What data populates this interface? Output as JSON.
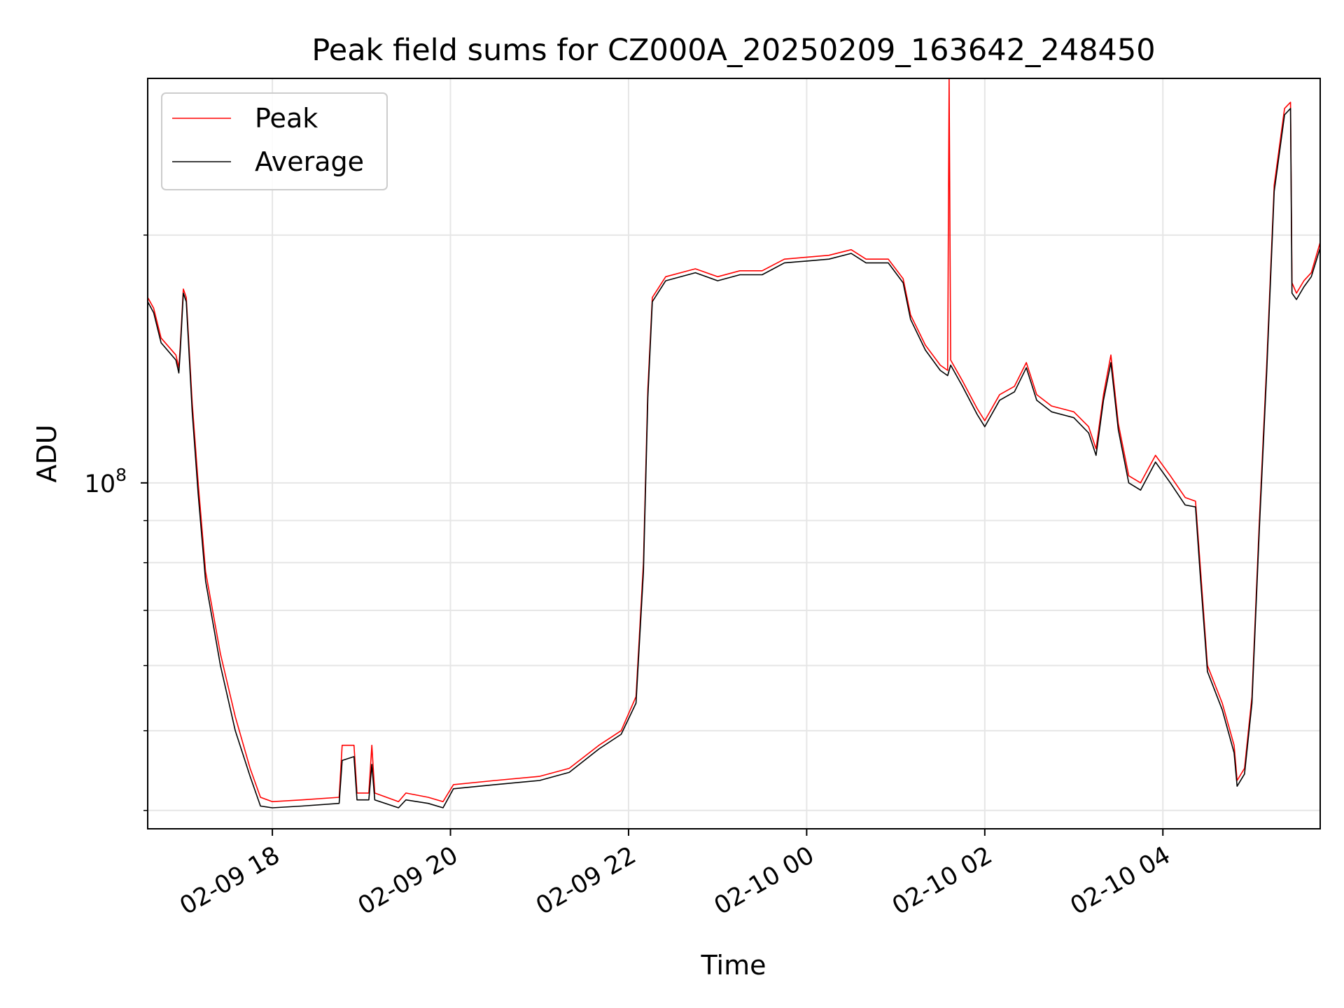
{
  "chart_data": {
    "type": "line",
    "title": "Peak field sums for CZ000A_20250209_163642_248450",
    "xlabel": "Time",
    "ylabel": "ADU",
    "y_scale": "log",
    "ylim": [
      38000000,
      310000000
    ],
    "xlim": [
      "2025-02-09 16:36",
      "2025-02-10 05:46"
    ],
    "x_tick_labels": [
      "02-09 18",
      "02-09 20",
      "02-09 22",
      "02-10 00",
      "02-10 02",
      "02-10 04"
    ],
    "x_ticks": [
      "2025-02-09 18:00",
      "2025-02-09 20:00",
      "2025-02-09 22:00",
      "2025-02-10 00:00",
      "2025-02-10 02:00",
      "2025-02-10 04:00"
    ],
    "y_major_ticks": [
      100000000
    ],
    "y_major_tick_labels": [
      "10^8"
    ],
    "y_minor_ticks": [
      40000000,
      50000000,
      60000000,
      70000000,
      80000000,
      90000000,
      200000000
    ],
    "grid": true,
    "legend_position": "upper-left",
    "series": [
      {
        "name": "Peak",
        "color": "#ff0000",
        "points": [
          [
            "2025-02-09 16:36",
            168000000
          ],
          [
            "2025-02-09 16:40",
            163000000
          ],
          [
            "2025-02-09 16:45",
            150000000
          ],
          [
            "2025-02-09 16:55",
            143000000
          ],
          [
            "2025-02-09 16:57",
            138000000
          ],
          [
            "2025-02-09 16:58",
            147000000
          ],
          [
            "2025-02-09 17:00",
            172000000
          ],
          [
            "2025-02-09 17:02",
            168000000
          ],
          [
            "2025-02-09 17:06",
            125000000
          ],
          [
            "2025-02-09 17:10",
            100000000
          ],
          [
            "2025-02-09 17:15",
            78000000
          ],
          [
            "2025-02-09 17:25",
            62000000
          ],
          [
            "2025-02-09 17:35",
            52000000
          ],
          [
            "2025-02-09 17:45",
            45000000
          ],
          [
            "2025-02-09 17:52",
            41500000
          ],
          [
            "2025-02-09 18:00",
            41000000
          ],
          [
            "2025-02-09 18:20",
            41200000
          ],
          [
            "2025-02-09 18:45",
            41500000
          ],
          [
            "2025-02-09 18:47",
            48000000
          ],
          [
            "2025-02-09 18:55",
            48000000
          ],
          [
            "2025-02-09 18:57",
            42000000
          ],
          [
            "2025-02-09 19:05",
            42000000
          ],
          [
            "2025-02-09 19:07",
            48000000
          ],
          [
            "2025-02-09 19:09",
            42000000
          ],
          [
            "2025-02-09 19:25",
            41000000
          ],
          [
            "2025-02-09 19:30",
            42000000
          ],
          [
            "2025-02-09 19:45",
            41500000
          ],
          [
            "2025-02-09 19:55",
            41000000
          ],
          [
            "2025-02-09 20:02",
            43000000
          ],
          [
            "2025-02-09 20:30",
            43500000
          ],
          [
            "2025-02-09 21:00",
            44000000
          ],
          [
            "2025-02-09 21:20",
            45000000
          ],
          [
            "2025-02-09 21:40",
            48000000
          ],
          [
            "2025-02-09 21:55",
            50000000
          ],
          [
            "2025-02-09 22:05",
            55000000
          ],
          [
            "2025-02-09 22:10",
            80000000
          ],
          [
            "2025-02-09 22:13",
            130000000
          ],
          [
            "2025-02-09 22:16",
            168000000
          ],
          [
            "2025-02-09 22:25",
            178000000
          ],
          [
            "2025-02-09 22:45",
            182000000
          ],
          [
            "2025-02-09 23:00",
            178000000
          ],
          [
            "2025-02-09 23:15",
            181000000
          ],
          [
            "2025-02-09 23:30",
            181000000
          ],
          [
            "2025-02-09 23:45",
            187000000
          ],
          [
            "2025-02-10 00:00",
            188000000
          ],
          [
            "2025-02-10 00:15",
            189000000
          ],
          [
            "2025-02-10 00:30",
            192000000
          ],
          [
            "2025-02-10 00:40",
            187000000
          ],
          [
            "2025-02-10 00:55",
            187000000
          ],
          [
            "2025-02-10 01:05",
            177000000
          ],
          [
            "2025-02-10 01:10",
            160000000
          ],
          [
            "2025-02-10 01:20",
            147000000
          ],
          [
            "2025-02-10 01:30",
            139000000
          ],
          [
            "2025-02-10 01:35",
            137000000
          ],
          [
            "2025-02-10 01:36",
            310000000
          ],
          [
            "2025-02-10 01:37",
            141000000
          ],
          [
            "2025-02-10 01:45",
            133000000
          ],
          [
            "2025-02-10 01:55",
            123000000
          ],
          [
            "2025-02-10 02:00",
            119000000
          ],
          [
            "2025-02-10 02:10",
            128000000
          ],
          [
            "2025-02-10 02:20",
            131000000
          ],
          [
            "2025-02-10 02:28",
            140000000
          ],
          [
            "2025-02-10 02:35",
            128000000
          ],
          [
            "2025-02-10 02:45",
            124000000
          ],
          [
            "2025-02-10 03:00",
            122000000
          ],
          [
            "2025-02-10 03:10",
            117000000
          ],
          [
            "2025-02-10 03:15",
            110000000
          ],
          [
            "2025-02-10 03:20",
            128000000
          ],
          [
            "2025-02-10 03:25",
            143000000
          ],
          [
            "2025-02-10 03:30",
            118000000
          ],
          [
            "2025-02-10 03:37",
            102000000
          ],
          [
            "2025-02-10 03:45",
            100000000
          ],
          [
            "2025-02-10 03:55",
            108000000
          ],
          [
            "2025-02-10 04:05",
            102000000
          ],
          [
            "2025-02-10 04:15",
            96000000
          ],
          [
            "2025-02-10 04:22",
            95000000
          ],
          [
            "2025-02-10 04:25",
            80000000
          ],
          [
            "2025-02-10 04:30",
            60000000
          ],
          [
            "2025-02-10 04:40",
            54000000
          ],
          [
            "2025-02-10 04:48",
            48000000
          ],
          [
            "2025-02-10 04:50",
            43500000
          ],
          [
            "2025-02-10 04:55",
            45000000
          ],
          [
            "2025-02-10 05:00",
            55000000
          ],
          [
            "2025-02-10 05:05",
            90000000
          ],
          [
            "2025-02-10 05:10",
            140000000
          ],
          [
            "2025-02-10 05:15",
            230000000
          ],
          [
            "2025-02-10 05:22",
            285000000
          ],
          [
            "2025-02-10 05:26",
            290000000
          ],
          [
            "2025-02-10 05:27",
            175000000
          ],
          [
            "2025-02-10 05:30",
            170000000
          ],
          [
            "2025-02-10 05:35",
            176000000
          ],
          [
            "2025-02-10 05:40",
            180000000
          ],
          [
            "2025-02-10 05:46",
            196000000
          ]
        ]
      },
      {
        "name": "Average",
        "color": "#000000",
        "points": [
          [
            "2025-02-09 16:36",
            166000000
          ],
          [
            "2025-02-09 16:40",
            161000000
          ],
          [
            "2025-02-09 16:45",
            148000000
          ],
          [
            "2025-02-09 16:55",
            141000000
          ],
          [
            "2025-02-09 16:57",
            136000000
          ],
          [
            "2025-02-09 16:58",
            145000000
          ],
          [
            "2025-02-09 17:00",
            170000000
          ],
          [
            "2025-02-09 17:02",
            166000000
          ],
          [
            "2025-02-09 17:06",
            122000000
          ],
          [
            "2025-02-09 17:10",
            97000000
          ],
          [
            "2025-02-09 17:15",
            76000000
          ],
          [
            "2025-02-09 17:25",
            60000000
          ],
          [
            "2025-02-09 17:35",
            50000000
          ],
          [
            "2025-02-09 17:45",
            44000000
          ],
          [
            "2025-02-09 17:52",
            40500000
          ],
          [
            "2025-02-09 18:00",
            40300000
          ],
          [
            "2025-02-09 18:20",
            40500000
          ],
          [
            "2025-02-09 18:45",
            40800000
          ],
          [
            "2025-02-09 18:47",
            46000000
          ],
          [
            "2025-02-09 18:55",
            46500000
          ],
          [
            "2025-02-09 18:57",
            41200000
          ],
          [
            "2025-02-09 19:05",
            41200000
          ],
          [
            "2025-02-09 19:07",
            45500000
          ],
          [
            "2025-02-09 19:09",
            41200000
          ],
          [
            "2025-02-09 19:25",
            40300000
          ],
          [
            "2025-02-09 19:30",
            41200000
          ],
          [
            "2025-02-09 19:45",
            40800000
          ],
          [
            "2025-02-09 19:55",
            40300000
          ],
          [
            "2025-02-09 20:02",
            42500000
          ],
          [
            "2025-02-09 20:30",
            43000000
          ],
          [
            "2025-02-09 21:00",
            43500000
          ],
          [
            "2025-02-09 21:20",
            44500000
          ],
          [
            "2025-02-09 21:40",
            47500000
          ],
          [
            "2025-02-09 21:55",
            49500000
          ],
          [
            "2025-02-09 22:05",
            54000000
          ],
          [
            "2025-02-09 22:10",
            78000000
          ],
          [
            "2025-02-09 22:13",
            127000000
          ],
          [
            "2025-02-09 22:16",
            166000000
          ],
          [
            "2025-02-09 22:25",
            176000000
          ],
          [
            "2025-02-09 22:45",
            180000000
          ],
          [
            "2025-02-09 23:00",
            176000000
          ],
          [
            "2025-02-09 23:15",
            179000000
          ],
          [
            "2025-02-09 23:30",
            179000000
          ],
          [
            "2025-02-09 23:45",
            185000000
          ],
          [
            "2025-02-10 00:00",
            186000000
          ],
          [
            "2025-02-10 00:15",
            187000000
          ],
          [
            "2025-02-10 00:30",
            190000000
          ],
          [
            "2025-02-10 00:40",
            185000000
          ],
          [
            "2025-02-10 00:55",
            185000000
          ],
          [
            "2025-02-10 01:05",
            175000000
          ],
          [
            "2025-02-10 01:10",
            158000000
          ],
          [
            "2025-02-10 01:20",
            145000000
          ],
          [
            "2025-02-10 01:30",
            137000000
          ],
          [
            "2025-02-10 01:35",
            135000000
          ],
          [
            "2025-02-10 01:37",
            139000000
          ],
          [
            "2025-02-10 01:45",
            131000000
          ],
          [
            "2025-02-10 01:55",
            121000000
          ],
          [
            "2025-02-10 02:00",
            117000000
          ],
          [
            "2025-02-10 02:10",
            126000000
          ],
          [
            "2025-02-10 02:20",
            129000000
          ],
          [
            "2025-02-10 02:28",
            138000000
          ],
          [
            "2025-02-10 02:35",
            126000000
          ],
          [
            "2025-02-10 02:45",
            122000000
          ],
          [
            "2025-02-10 03:00",
            120000000
          ],
          [
            "2025-02-10 03:10",
            115000000
          ],
          [
            "2025-02-10 03:15",
            108000000
          ],
          [
            "2025-02-10 03:20",
            126000000
          ],
          [
            "2025-02-10 03:25",
            140000000
          ],
          [
            "2025-02-10 03:30",
            116000000
          ],
          [
            "2025-02-10 03:37",
            100000000
          ],
          [
            "2025-02-10 03:45",
            98000000
          ],
          [
            "2025-02-10 03:55",
            106000000
          ],
          [
            "2025-02-10 04:05",
            100000000
          ],
          [
            "2025-02-10 04:15",
            94000000
          ],
          [
            "2025-02-10 04:22",
            93500000
          ],
          [
            "2025-02-10 04:25",
            78000000
          ],
          [
            "2025-02-10 04:30",
            59000000
          ],
          [
            "2025-02-10 04:40",
            53000000
          ],
          [
            "2025-02-10 04:48",
            47000000
          ],
          [
            "2025-02-10 04:50",
            42800000
          ],
          [
            "2025-02-10 04:55",
            44300000
          ],
          [
            "2025-02-10 05:00",
            54000000
          ],
          [
            "2025-02-10 05:05",
            88000000
          ],
          [
            "2025-02-10 05:10",
            137000000
          ],
          [
            "2025-02-10 05:15",
            226000000
          ],
          [
            "2025-02-10 05:22",
            280000000
          ],
          [
            "2025-02-10 05:26",
            285000000
          ],
          [
            "2025-02-10 05:27",
            170000000
          ],
          [
            "2025-02-10 05:30",
            167000000
          ],
          [
            "2025-02-10 05:35",
            173000000
          ],
          [
            "2025-02-10 05:40",
            178000000
          ],
          [
            "2025-02-10 05:46",
            193000000
          ]
        ]
      }
    ]
  }
}
